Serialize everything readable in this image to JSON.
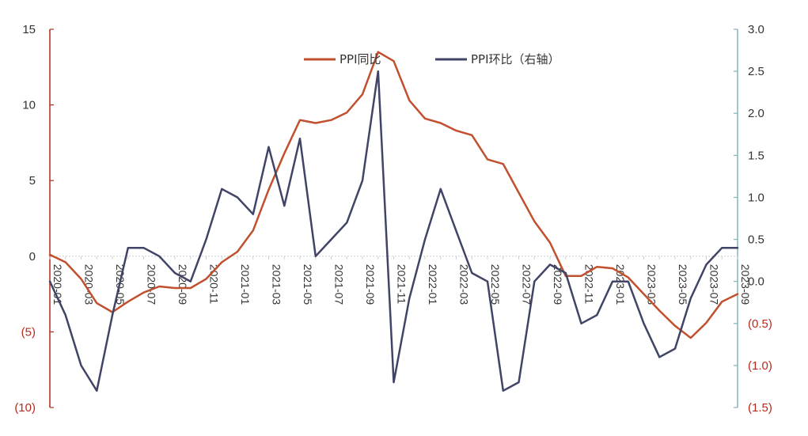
{
  "chart_data": {
    "type": "line",
    "title": "",
    "xlabel": "",
    "ylabel": "",
    "y2label": "",
    "colors": {
      "yoy": "#C0502E",
      "mom": "#404466",
      "left_axis": "#B52A1E",
      "right_axis": "#7FB5BE",
      "grid": "#C8D0D6"
    },
    "x": [
      "2020-01",
      "2020-02",
      "2020-03",
      "2020-04",
      "2020-05",
      "2020-06",
      "2020-07",
      "2020-08",
      "2020-09",
      "2020-10",
      "2020-11",
      "2020-12",
      "2021-01",
      "2021-02",
      "2021-03",
      "2021-04",
      "2021-05",
      "2021-06",
      "2021-07",
      "2021-08",
      "2021-09",
      "2021-10",
      "2021-11",
      "2021-12",
      "2022-01",
      "2022-02",
      "2022-03",
      "2022-04",
      "2022-05",
      "2022-06",
      "2022-07",
      "2022-08",
      "2022-09",
      "2022-10",
      "2022-11",
      "2022-12",
      "2023-01",
      "2023-02",
      "2023-03",
      "2023-04",
      "2023-05",
      "2023-06",
      "2023-07",
      "2023-08",
      "2023-09"
    ],
    "x_tick_labels": [
      "2020-01",
      "2020-03",
      "2020-05",
      "2020-07",
      "2020-09",
      "2020-11",
      "2021-01",
      "2021-03",
      "2021-05",
      "2021-07",
      "2021-09",
      "2021-11",
      "2022-01",
      "2022-03",
      "2022-05",
      "2022-07",
      "2022-09",
      "2022-11",
      "2023-01",
      "2023-03",
      "2023-05",
      "2023-07",
      "2023-09"
    ],
    "y_left": {
      "ylim": [
        -10,
        15
      ],
      "ticks": [
        15,
        10,
        5,
        0,
        -5,
        -10
      ],
      "tick_labels": [
        "15",
        "10",
        "5",
        "0",
        "(5)",
        "(10)"
      ]
    },
    "y_right": {
      "ylim": [
        -1.5,
        3.0
      ],
      "ticks": [
        3.0,
        2.5,
        2.0,
        1.5,
        1.0,
        0.5,
        0.0,
        -0.5,
        -1.0,
        -1.5
      ],
      "tick_labels": [
        "3.0",
        "2.5",
        "2.0",
        "1.5",
        "1.0",
        "0.5",
        "0.0",
        "(0.5)",
        "(1.0)",
        "(1.5)"
      ]
    },
    "legend_position": "top-center",
    "series": [
      {
        "name": "PPI同比",
        "axis": "left",
        "values": [
          0.1,
          -0.4,
          -1.5,
          -3.1,
          -3.7,
          -3.0,
          -2.4,
          -2.0,
          -2.1,
          -2.1,
          -1.5,
          -0.4,
          0.3,
          1.7,
          4.4,
          6.8,
          9.0,
          8.8,
          9.0,
          9.5,
          10.7,
          13.5,
          12.9,
          10.3,
          9.1,
          8.8,
          8.3,
          8.0,
          6.4,
          6.1,
          4.2,
          2.3,
          0.9,
          -1.3,
          -1.3,
          -0.7,
          -0.8,
          -1.4,
          -2.5,
          -3.6,
          -4.6,
          -5.4,
          -4.4,
          -3.0,
          -2.5
        ]
      },
      {
        "name": "PPI环比（右轴）",
        "axis": "right",
        "values": [
          0.0,
          -0.4,
          -1.0,
          -1.3,
          -0.4,
          0.4,
          0.4,
          0.3,
          0.1,
          0.0,
          0.5,
          1.1,
          1.0,
          0.8,
          1.6,
          0.9,
          1.7,
          0.3,
          0.5,
          0.7,
          1.2,
          2.5,
          -1.2,
          -0.2,
          0.5,
          1.1,
          0.6,
          0.1,
          0.0,
          -1.3,
          -1.2,
          0.0,
          0.2,
          0.1,
          -0.5,
          -0.4,
          0.0,
          0.0,
          -0.5,
          -0.9,
          -0.8,
          -0.2,
          0.2,
          0.4,
          0.4
        ]
      }
    ]
  }
}
